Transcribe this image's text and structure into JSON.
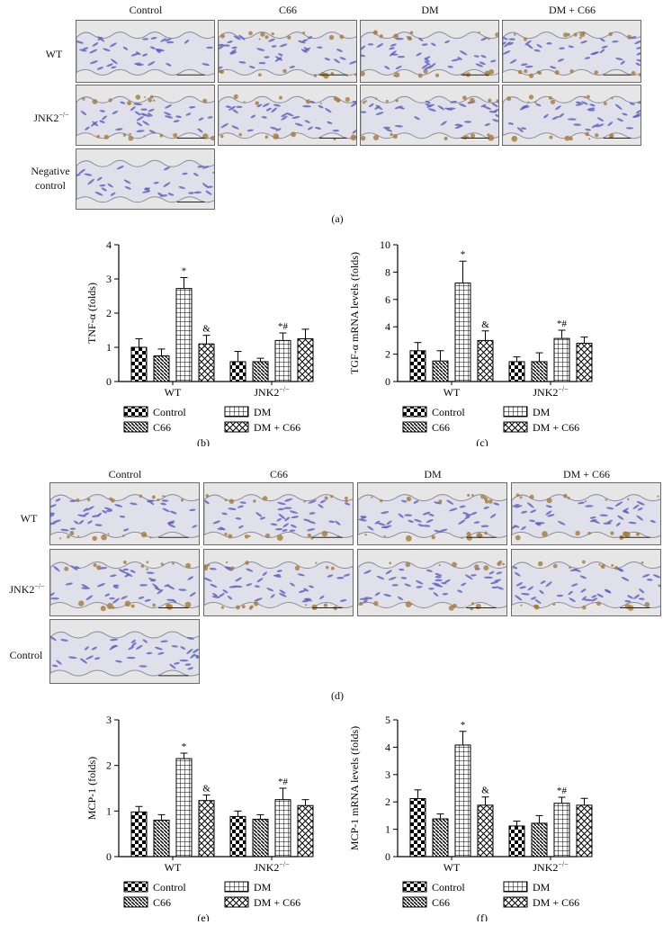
{
  "panel_a": {
    "columns": [
      "Control",
      "C66",
      "DM",
      "DM + C66"
    ],
    "rows": [
      "WT",
      "JNK2"
    ],
    "row_suffix": "−/−",
    "negative_label_1": "Negative",
    "negative_label_2": "control",
    "label": "(a)"
  },
  "panel_d": {
    "columns": [
      "Control",
      "C66",
      "DM",
      "DM + C66"
    ],
    "rows": [
      "WT",
      "JNK2"
    ],
    "row_suffix": "−/−",
    "control_label": "Control",
    "label": "(d)"
  },
  "legend": [
    "Control",
    "C66",
    "DM",
    "DM + C66"
  ],
  "colors": {
    "bar_stroke": "#000000",
    "tissue_bg": "#dfe0ea",
    "nuclei": "#5a5fbf",
    "stain_brown": "#a57a3a"
  },
  "chart_data": [
    {
      "id": "b",
      "type": "bar",
      "panel_label": "(b)",
      "ylabel": "TNF-α (folds)",
      "ylim": [
        0,
        4
      ],
      "yticks": [
        0,
        1,
        2,
        3,
        4
      ],
      "groups": [
        "WT",
        "JNK2−/−"
      ],
      "series": [
        {
          "name": "Control",
          "values": [
            1.0,
            0.58
          ],
          "errors": [
            0.25,
            0.3
          ]
        },
        {
          "name": "C66",
          "values": [
            0.75,
            0.58
          ],
          "errors": [
            0.2,
            0.1
          ]
        },
        {
          "name": "DM",
          "values": [
            2.72,
            1.2
          ],
          "errors": [
            0.32,
            0.22
          ]
        },
        {
          "name": "DM + C66",
          "values": [
            1.1,
            1.25
          ],
          "errors": [
            0.25,
            0.28
          ]
        }
      ],
      "annotations": [
        [
          "",
          ""
        ],
        [
          "",
          ""
        ],
        [
          "*",
          "*#"
        ],
        [
          "&",
          ""
        ]
      ]
    },
    {
      "id": "c",
      "type": "bar",
      "panel_label": "(c)",
      "ylabel": "TGF-α mRNA levels (folds)",
      "ylim": [
        0,
        10
      ],
      "yticks": [
        0,
        2,
        4,
        6,
        8,
        10
      ],
      "groups": [
        "WT",
        "JNK2−/−"
      ],
      "series": [
        {
          "name": "Control",
          "values": [
            2.25,
            1.45
          ],
          "errors": [
            0.6,
            0.35
          ]
        },
        {
          "name": "C66",
          "values": [
            1.5,
            1.45
          ],
          "errors": [
            0.75,
            0.65
          ]
        },
        {
          "name": "DM",
          "values": [
            7.2,
            3.15
          ],
          "errors": [
            1.6,
            0.6
          ]
        },
        {
          "name": "DM + C66",
          "values": [
            3.0,
            2.8
          ],
          "errors": [
            0.7,
            0.45
          ]
        }
      ],
      "annotations": [
        [
          "",
          ""
        ],
        [
          "",
          ""
        ],
        [
          "*",
          "*#"
        ],
        [
          "&",
          ""
        ]
      ]
    },
    {
      "id": "e",
      "type": "bar",
      "panel_label": "(e)",
      "ylabel": "MCP-1 (folds)",
      "ylim": [
        0,
        3
      ],
      "yticks": [
        0,
        1,
        2,
        3
      ],
      "groups": [
        "WT",
        "JNK2−/−"
      ],
      "series": [
        {
          "name": "Control",
          "values": [
            0.98,
            0.88
          ],
          "errors": [
            0.12,
            0.12
          ]
        },
        {
          "name": "C66",
          "values": [
            0.8,
            0.82
          ],
          "errors": [
            0.12,
            0.1
          ]
        },
        {
          "name": "DM",
          "values": [
            2.15,
            1.25
          ],
          "errors": [
            0.12,
            0.25
          ]
        },
        {
          "name": "DM + C66",
          "values": [
            1.23,
            1.12
          ],
          "errors": [
            0.12,
            0.13
          ]
        }
      ],
      "annotations": [
        [
          "",
          ""
        ],
        [
          "",
          ""
        ],
        [
          "*",
          "*#"
        ],
        [
          "&",
          ""
        ]
      ]
    },
    {
      "id": "f",
      "type": "bar",
      "panel_label": "(f)",
      "ylabel": "MCP-1 mRNA levels (folds)",
      "ylim": [
        0,
        5
      ],
      "yticks": [
        0,
        1,
        2,
        3,
        4,
        5
      ],
      "groups": [
        "WT",
        "JNK2−/−"
      ],
      "series": [
        {
          "name": "Control",
          "values": [
            2.12,
            1.12
          ],
          "errors": [
            0.32,
            0.18
          ]
        },
        {
          "name": "C66",
          "values": [
            1.38,
            1.22
          ],
          "errors": [
            0.18,
            0.28
          ]
        },
        {
          "name": "DM",
          "values": [
            4.08,
            1.95
          ],
          "errors": [
            0.5,
            0.22
          ]
        },
        {
          "name": "DM + C66",
          "values": [
            1.88,
            1.88
          ],
          "errors": [
            0.3,
            0.25
          ]
        }
      ],
      "annotations": [
        [
          "",
          ""
        ],
        [
          "",
          ""
        ],
        [
          "*",
          "*#"
        ],
        [
          "&",
          ""
        ]
      ]
    }
  ]
}
